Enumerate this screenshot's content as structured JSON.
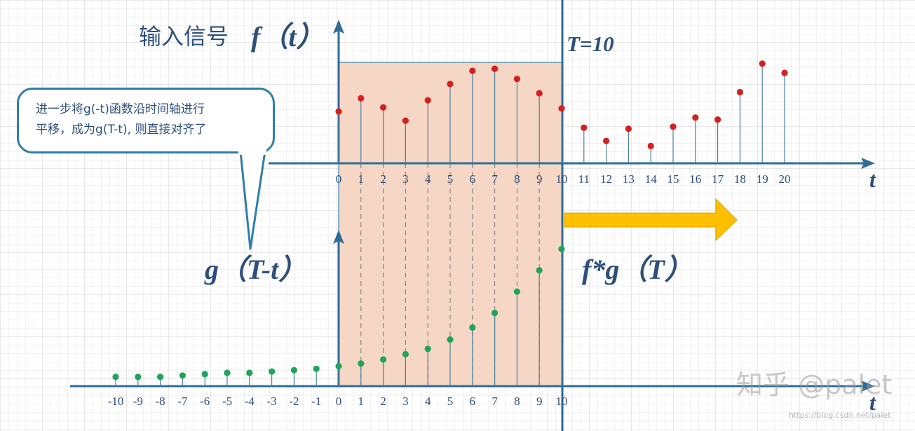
{
  "titles": {
    "input_signal": "输入信号",
    "f_of_t": "f（t）",
    "T_marker": "T=10",
    "g_label": "g（T-t）",
    "conv_label": "f*g（T）",
    "axis_t": "t"
  },
  "callout": {
    "line1": "进一步将g(-t)函数沿时间轴进行",
    "line2": "平移，成为g(T-t), 则直接对齐了"
  },
  "watermark": {
    "main": "知乎 @palet",
    "url": "https://blog.csdn.net/palet"
  },
  "colors": {
    "axis": "#2e6d96",
    "f_points": "#d42020",
    "g_points": "#1ea55a",
    "window_fill": "#f6d6c4",
    "arrow": "#ffc000",
    "text": "#2d4f7c"
  },
  "chart_data": [
    {
      "type": "scatter",
      "name": "f(t)",
      "x": [
        0,
        1,
        2,
        3,
        4,
        5,
        6,
        7,
        8,
        9,
        10,
        11,
        12,
        13,
        14,
        15,
        16,
        17,
        18,
        19,
        20
      ],
      "y": [
        0.51,
        0.64,
        0.55,
        0.42,
        0.62,
        0.78,
        0.91,
        0.93,
        0.83,
        0.69,
        0.54,
        0.35,
        0.22,
        0.34,
        0.17,
        0.36,
        0.45,
        0.43,
        0.7,
        0.98,
        0.89
      ],
      "tick_labels": [
        "0",
        "1",
        "2",
        "3",
        "4",
        "5",
        "6",
        "7",
        "8",
        "9",
        "10",
        "11",
        "12",
        "13",
        "14",
        "15",
        "16",
        "17",
        "18",
        "19",
        "20"
      ],
      "xlabel": "t"
    },
    {
      "type": "scatter",
      "name": "g(T-t)",
      "x": [
        -10,
        -9,
        -8,
        -7,
        -6,
        -5,
        -4,
        -3,
        -2,
        -1,
        0,
        1,
        2,
        3,
        4,
        5,
        6,
        7,
        8,
        9,
        10
      ],
      "y": [
        0.07,
        0.07,
        0.07,
        0.08,
        0.09,
        0.1,
        0.1,
        0.11,
        0.12,
        0.13,
        0.15,
        0.17,
        0.2,
        0.24,
        0.28,
        0.35,
        0.44,
        0.55,
        0.71,
        0.87,
        1.03
      ],
      "tick_labels": [
        "-10",
        "-9",
        "-8",
        "-7",
        "-6",
        "-5",
        "-4",
        "-3",
        "-2",
        "-1",
        "0",
        "1",
        "2",
        "3",
        "4",
        "5",
        "6",
        "7",
        "8",
        "9",
        "10"
      ],
      "xlabel": "t"
    }
  ]
}
